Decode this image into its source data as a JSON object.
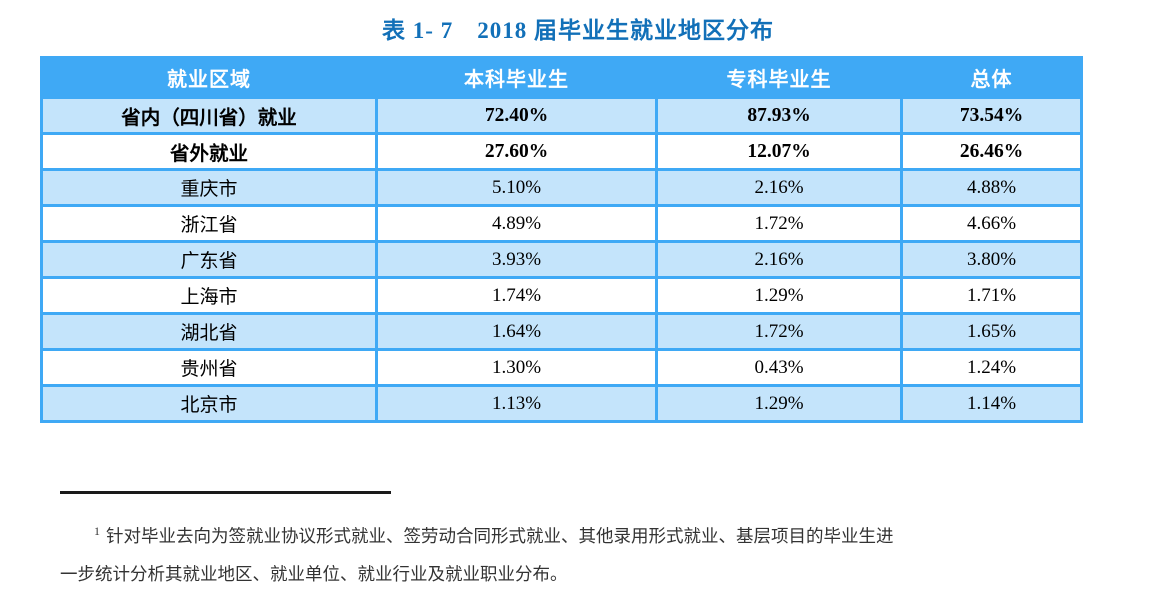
{
  "title": "表 1- 7　2018 届毕业生就业地区分布",
  "table": {
    "columns": [
      "就业区域",
      "本科毕业生",
      "专科毕业生",
      "总体"
    ],
    "rows": [
      [
        "省内（四川省）就业",
        "72.40%",
        "87.93%",
        "73.54%"
      ],
      [
        "省外就业",
        "27.60%",
        "12.07%",
        "26.46%"
      ],
      [
        "重庆市",
        "5.10%",
        "2.16%",
        "4.88%"
      ],
      [
        "浙江省",
        "4.89%",
        "1.72%",
        "4.66%"
      ],
      [
        "广东省",
        "3.93%",
        "2.16%",
        "3.80%"
      ],
      [
        "上海市",
        "1.74%",
        "1.29%",
        "1.71%"
      ],
      [
        "湖北省",
        "1.64%",
        "1.72%",
        "1.65%"
      ],
      [
        "贵州省",
        "1.30%",
        "0.43%",
        "1.24%"
      ],
      [
        "北京市",
        "1.13%",
        "1.29%",
        "1.14%"
      ]
    ]
  },
  "footnote": {
    "marker": "1",
    "line1": "针对毕业去向为签就业协议形式就业、签劳动合同形式就业、其他录用形式就业、基层项目的毕业生进",
    "line2": "一步统计分析其就业地区、就业单位、就业行业及就业职业分布。"
  },
  "colors": {
    "title_blue": "#1270B8",
    "header_bg": "#3FA9F5",
    "border_blue": "#3FA9F5",
    "alt_row_bg": "#C4E4FB",
    "footnote_rule": "#1a1a1a"
  }
}
